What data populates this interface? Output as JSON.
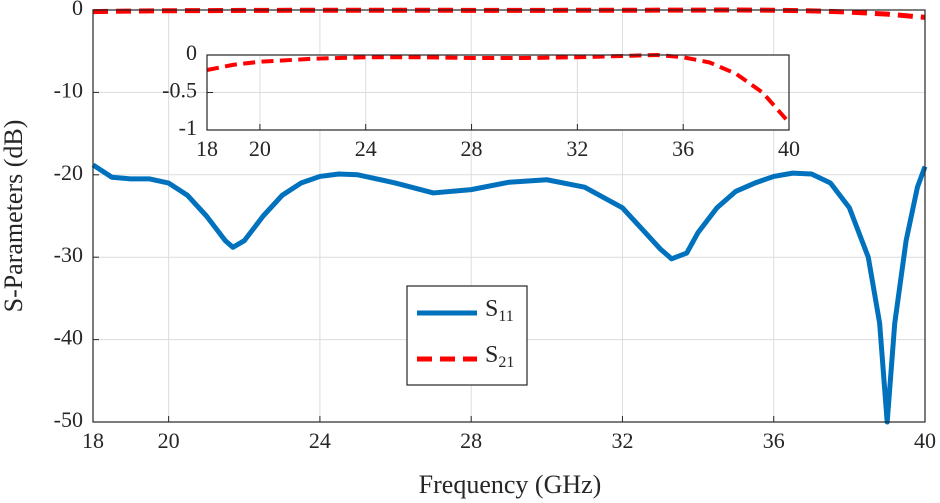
{
  "chart_data": {
    "type": "line",
    "xlabel": "Frequency (GHz)",
    "ylabel": "S-Parameters (dB)",
    "xlim": [
      18,
      40
    ],
    "xticks": [
      18,
      20,
      24,
      28,
      32,
      36,
      40
    ],
    "ylim": [
      -50,
      0
    ],
    "yticks": [
      -50,
      -40,
      -30,
      -20,
      -10,
      0
    ],
    "grid": true,
    "legend": "lower center",
    "series": [
      {
        "name": "S11",
        "color": "#0072bd",
        "dash": "solid",
        "x": [
          18,
          18.5,
          19,
          19.5,
          20,
          20.5,
          21,
          21.5,
          21.7,
          22,
          22.5,
          23,
          23.5,
          24,
          24.5,
          25,
          26,
          27,
          28,
          29,
          30,
          31,
          32,
          32.5,
          33,
          33.3,
          33.7,
          34,
          34.5,
          35,
          35.5,
          36,
          36.5,
          37,
          37.5,
          38,
          38.5,
          38.8,
          39,
          39.2,
          39.5,
          39.8,
          40
        ],
        "values": [
          -18.8,
          -20.3,
          -20.5,
          -20.5,
          -21,
          -22.5,
          -25,
          -28,
          -28.8,
          -28,
          -25,
          -22.5,
          -21,
          -20.2,
          -19.9,
          -20,
          -21,
          -22.2,
          -21.8,
          -20.9,
          -20.6,
          -21.5,
          -24,
          -26.5,
          -29,
          -30.2,
          -29.5,
          -27,
          -24,
          -22,
          -21,
          -20.2,
          -19.8,
          -19.9,
          -21,
          -24,
          -30,
          -38,
          -50,
          -38,
          -28,
          -21.5,
          -19
        ]
      },
      {
        "name": "S21",
        "color": "#ff0000",
        "dash": "dashed",
        "x": [
          18,
          19,
          20,
          22,
          24,
          26,
          28,
          30,
          32,
          34,
          35,
          36,
          37,
          38,
          39,
          40
        ],
        "values": [
          -0.2,
          -0.13,
          -0.09,
          -0.05,
          -0.03,
          -0.03,
          -0.04,
          -0.04,
          -0.03,
          -0.01,
          0,
          -0.03,
          -0.1,
          -0.25,
          -0.5,
          -0.9
        ]
      }
    ],
    "inset": {
      "series_index": 1,
      "xlim": [
        18,
        40
      ],
      "xticks": [
        18,
        20,
        24,
        28,
        32,
        36,
        40
      ],
      "ylim": [
        -1,
        0
      ],
      "yticks": [
        -1,
        -0.5,
        0
      ],
      "grid": true
    }
  }
}
